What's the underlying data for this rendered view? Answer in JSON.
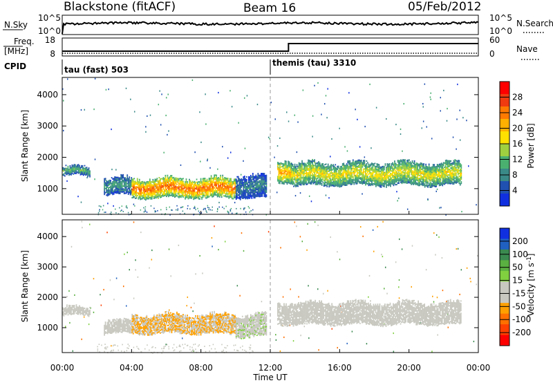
{
  "header": {
    "station": "Blackstone (fitACF)",
    "beam": "Beam 16",
    "date": "05/Feb/2012"
  },
  "top_panels": {
    "nsky_label": "N.Sky",
    "nsky_ticks": [
      "10^5",
      "10^0"
    ],
    "nsearch_label": "N.Search",
    "nsearch_ticks": [
      "10^5",
      "10^0"
    ],
    "freq_label_line1": "Freq.",
    "freq_label_line2": "[MHz]",
    "freq_ticks": [
      "18",
      "8"
    ],
    "nave_label": "Nave",
    "nave_ticks": [
      "60",
      "0"
    ],
    "cpid_label": "CPID",
    "cpid_segments": [
      {
        "text": "tau (fast) 503",
        "start_hour": 0
      },
      {
        "text": "themis (tau) 3310",
        "start_hour": 12
      }
    ]
  },
  "x_axis": {
    "title": "Time UT",
    "ticks": [
      "00:00",
      "04:00",
      "08:00",
      "12:00",
      "16:00",
      "20:00",
      "00:00"
    ],
    "tick_hours": [
      0,
      4,
      8,
      12,
      16,
      20,
      24
    ]
  },
  "power_colorbar": {
    "label": "Power [dB]",
    "ticks": [
      "28",
      "24",
      "20",
      "16",
      "12",
      "8",
      "4"
    ],
    "colors": [
      "#ff0000",
      "#f03a10",
      "#ff7a00",
      "#ffb000",
      "#ffe000",
      "#9fd040",
      "#4ab070",
      "#3a8a88",
      "#2050b0",
      "#1030e0"
    ]
  },
  "velocity_colorbar": {
    "label_main": "Velocity [m s",
    "label_sup": "-1",
    "label_end": "]",
    "ticks": [
      "200",
      "100",
      "50",
      "15",
      "-15",
      "-50",
      "-100",
      "-200"
    ],
    "colors": [
      "#1030e0",
      "#2060c0",
      "#3a8a50",
      "#5ab040",
      "#80d040",
      "#c8c8c0",
      "#c8c8c0",
      "#ffa000",
      "#ff7000",
      "#ff4000",
      "#ff0000"
    ]
  },
  "chart_data": [
    {
      "type": "heatmap",
      "title": "Power",
      "xlabel": "Time UT",
      "ylabel": "Slant Range [km]",
      "y_ticks": [
        1000,
        2000,
        3000,
        4000
      ],
      "ylim": [
        180,
        4550
      ],
      "xlim_hours": [
        0,
        24
      ],
      "colorbar_range_db": [
        0,
        32
      ],
      "features": [
        {
          "hours": [
            0,
            1.6
          ],
          "range_km": [
            1400,
            1650
          ],
          "power_db": 12
        },
        {
          "hours": [
            2.4,
            4.0
          ],
          "range_km": [
            800,
            1300
          ],
          "power_db": 10
        },
        {
          "hours": [
            4.0,
            10.0
          ],
          "range_km": [
            700,
            1300
          ],
          "power_db": 26
        },
        {
          "hours": [
            10.0,
            11.8
          ],
          "range_km": [
            700,
            1400
          ],
          "power_db": 8
        },
        {
          "hours": [
            12.4,
            13.2
          ],
          "range_km": [
            1200,
            1900
          ],
          "power_db": 22
        },
        {
          "hours": [
            13.2,
            23.0
          ],
          "range_km": [
            1100,
            1800
          ],
          "power_db": 18
        }
      ]
    },
    {
      "type": "heatmap",
      "title": "Velocity",
      "xlabel": "Time UT",
      "ylabel": "Slant Range [km]",
      "y_ticks": [
        1000,
        2000,
        3000,
        4000
      ],
      "ylim": [
        180,
        4550
      ],
      "xlim_hours": [
        0,
        24
      ],
      "colorbar_range_ms": [
        -200,
        200
      ],
      "features": [
        {
          "hours": [
            0,
            1.6
          ],
          "range_km": [
            1400,
            1650
          ],
          "velocity_ms": 0
        },
        {
          "hours": [
            2.4,
            4.0
          ],
          "range_km": [
            800,
            1200
          ],
          "velocity_ms": -5
        },
        {
          "hours": [
            4.0,
            10.0
          ],
          "range_km": [
            800,
            1400
          ],
          "velocity_ms": -60
        },
        {
          "hours": [
            10.0,
            11.8
          ],
          "range_km": [
            700,
            1400
          ],
          "velocity_ms": 10
        },
        {
          "hours": [
            12.4,
            23.0
          ],
          "range_km": [
            1100,
            1800
          ],
          "velocity_ms": 0
        }
      ]
    }
  ]
}
